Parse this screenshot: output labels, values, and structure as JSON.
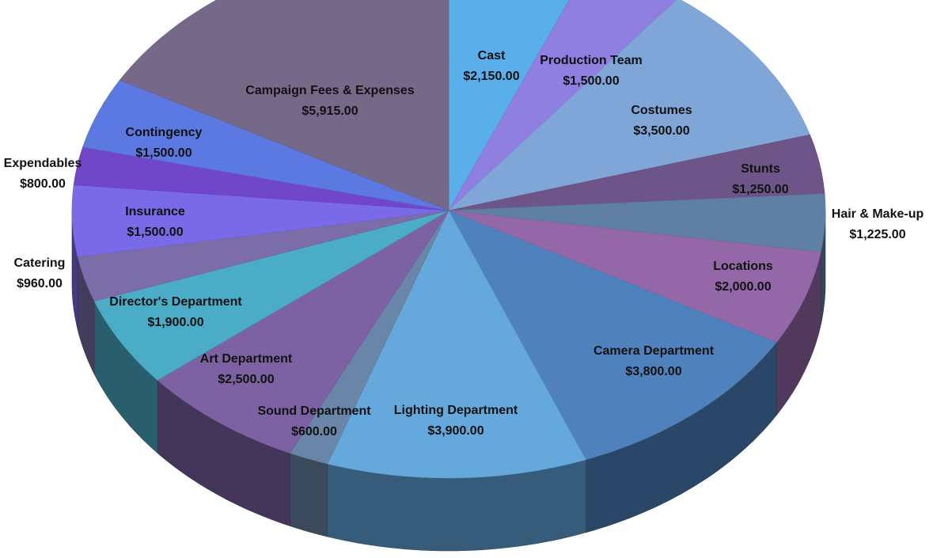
{
  "chart_data": {
    "type": "pie",
    "style": "3d",
    "title": "",
    "categories": [
      "Cast",
      "Production Team",
      "Costumes",
      "Stunts",
      "Hair & Make-up",
      "Locations",
      "Camera Department",
      "Lighting Department",
      "Sound Department",
      "Art Department",
      "Director's Department",
      "Catering",
      "Insurance",
      "Expendables",
      "Contingency",
      "Campaign Fees & Expenses"
    ],
    "values": [
      2150,
      1500,
      3500,
      1250,
      1225,
      2000,
      3800,
      3900,
      600,
      2500,
      1900,
      960,
      1500,
      800,
      1500,
      5915
    ],
    "value_labels": [
      "$2,150.00",
      "$1,500.00",
      "$3,500.00",
      "$1,250.00",
      "$1,225.00",
      "$2,000.00",
      "$3,800.00",
      "$3,900.00",
      "$600.00",
      "$2,500.00",
      "$1,900.00",
      "$960.00",
      "$1,500.00",
      "$800.00",
      "$1,500.00",
      "$5,915.00"
    ],
    "colors": [
      "#5aaeea",
      "#8e7fe0",
      "#80a6d8",
      "#6e5587",
      "#5f7fa3",
      "#9468a8",
      "#4f81bd",
      "#64a8dc",
      "#6986a8",
      "#7c61a3",
      "#4aacc6",
      "#7b6da8",
      "#7b6ae8",
      "#7147c9",
      "#5b79e0",
      "#756889"
    ],
    "legend": "none"
  }
}
